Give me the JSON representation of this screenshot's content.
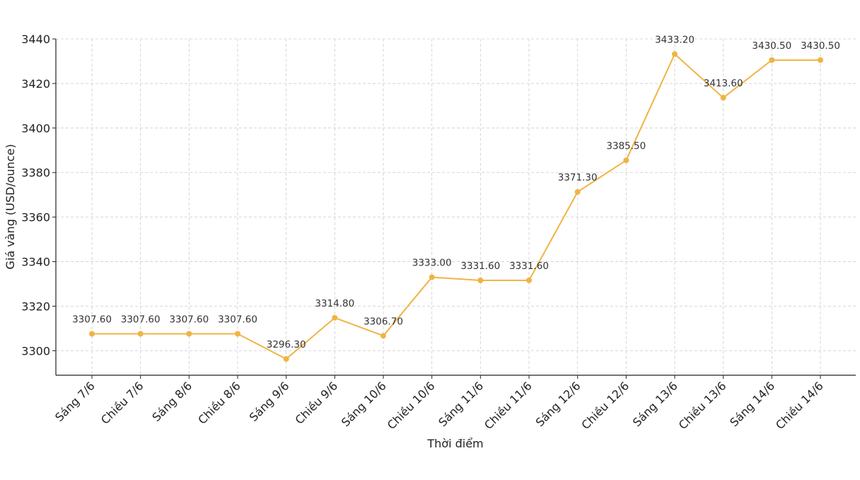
{
  "chart_data": {
    "type": "line",
    "categories": [
      "Sáng 7/6",
      "Chiều 7/6",
      "Sáng 8/6",
      "Chiều 8/6",
      "Sáng 9/6",
      "Chiều 9/6",
      "Sáng 10/6",
      "Chiều 10/6",
      "Sáng 11/6",
      "Chiều 11/6",
      "Sáng 12/6",
      "Chiều 12/6",
      "Sáng 13/6",
      "Chiều 13/6",
      "Sáng 14/6",
      "Chiều 14/6"
    ],
    "values": [
      3307.6,
      3307.6,
      3307.6,
      3307.6,
      3296.3,
      3314.8,
      3306.7,
      3333.0,
      3331.6,
      3331.6,
      3371.3,
      3385.5,
      3433.2,
      3413.6,
      3430.5,
      3430.5
    ],
    "data_labels": [
      "3307.60",
      "3307.60",
      "3307.60",
      "3307.60",
      "3296.30",
      "3314.80",
      "3306.70",
      "3333.00",
      "3331.60",
      "3331.60",
      "3371.30",
      "3385.50",
      "3433.20",
      "3413.60",
      "3430.50",
      "3430.50"
    ],
    "title": "",
    "xlabel": "Thời điểm",
    "ylabel": "Giá vàng (USD/ounce)",
    "ylim": [
      3289,
      3440
    ],
    "yticks": [
      3300,
      3320,
      3340,
      3360,
      3380,
      3400,
      3420,
      3440
    ],
    "ytick_labels": [
      "3300",
      "3320",
      "3340",
      "3360",
      "3380",
      "3400",
      "3420",
      "3440"
    ],
    "grid": true,
    "line_color": "#f0b444",
    "marker_color": "#f0b444"
  }
}
